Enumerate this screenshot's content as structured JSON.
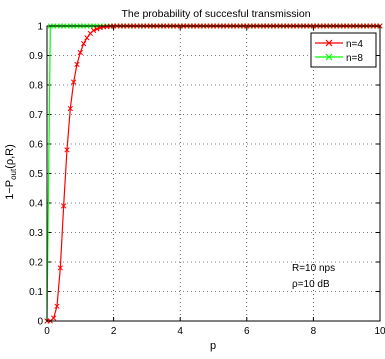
{
  "chart_data": {
    "type": "line",
    "title": "The probability of succesful transmission",
    "xlabel": "p",
    "ylabel": {
      "main": "1−P",
      "sub": "out",
      "tail": "(ρ,R)"
    },
    "xlim": [
      0,
      10
    ],
    "ylim": [
      0,
      1
    ],
    "xticks": [
      "0",
      "2",
      "4",
      "6",
      "8",
      "10"
    ],
    "xtick_values": [
      0,
      2,
      4,
      6,
      8,
      10
    ],
    "yticks": [
      "0",
      "0.1",
      "0.2",
      "0.3",
      "0.4",
      "0.5",
      "0.6",
      "0.7",
      "0.8",
      "0.9",
      "1"
    ],
    "ytick_values": [
      0,
      0.1,
      0.2,
      0.3,
      0.4,
      0.5,
      0.6,
      0.7,
      0.8,
      0.9,
      1
    ],
    "grid": true,
    "legend_position": "top-right",
    "annotations": [
      "R=10 nps",
      "ρ=10 dB"
    ],
    "series": [
      {
        "name": "n=4",
        "color": "#ff0000",
        "marker": "x",
        "x": [
          0,
          0.1,
          0.2,
          0.3,
          0.4,
          0.5,
          0.6,
          0.7,
          0.8,
          0.9,
          1.0,
          1.1,
          1.2,
          1.3,
          1.4,
          1.5,
          1.6,
          1.7,
          1.8,
          1.9,
          2.0,
          2.1,
          2.2,
          2.3,
          2.4,
          2.5,
          2.6,
          2.7,
          2.8,
          2.9,
          3.0,
          3.1,
          3.2,
          3.3,
          3.4,
          3.5,
          3.6,
          3.7,
          3.8,
          3.9,
          4.0,
          4.1,
          4.2,
          4.3,
          4.4,
          4.5,
          4.6,
          4.7,
          4.8,
          4.9,
          5.0,
          5.1,
          5.2,
          5.3,
          5.4,
          5.5,
          5.6,
          5.7,
          5.8,
          5.9,
          6.0,
          6.1,
          6.2,
          6.3,
          6.4,
          6.5,
          6.6,
          6.7,
          6.8,
          6.9,
          7.0,
          7.1,
          7.2,
          7.3,
          7.4,
          7.5,
          7.6,
          7.7,
          7.8,
          7.9,
          8.0,
          8.1,
          8.2,
          8.3,
          8.4,
          8.5,
          8.6,
          8.7,
          8.8,
          8.9,
          9.0,
          9.1,
          9.2,
          9.3,
          9.4,
          9.5,
          9.6,
          9.7,
          9.8,
          9.9,
          10.0
        ],
        "y": [
          0,
          0,
          0.01,
          0.05,
          0.18,
          0.39,
          0.58,
          0.72,
          0.81,
          0.87,
          0.91,
          0.94,
          0.96,
          0.975,
          0.985,
          0.99,
          0.994,
          0.997,
          0.998,
          0.999,
          1,
          1,
          1,
          1,
          1,
          1,
          1,
          1,
          1,
          1,
          1,
          1,
          1,
          1,
          1,
          1,
          1,
          1,
          1,
          1,
          1,
          1,
          1,
          1,
          1,
          1,
          1,
          1,
          1,
          1,
          1,
          1,
          1,
          1,
          1,
          1,
          1,
          1,
          1,
          1,
          1,
          1,
          1,
          1,
          1,
          1,
          1,
          1,
          1,
          1,
          1,
          1,
          1,
          1,
          1,
          1,
          1,
          1,
          1,
          1,
          1,
          1,
          1,
          1,
          1,
          1,
          1,
          1,
          1,
          1,
          1,
          1,
          1,
          1,
          1,
          1,
          1,
          1,
          1,
          1,
          1
        ]
      },
      {
        "name": "n=8",
        "color": "#00ff00",
        "marker": "x",
        "x": [
          0,
          0.1,
          0.2,
          0.3,
          0.4,
          0.5,
          0.6,
          0.7,
          0.8,
          0.9,
          1.0,
          1.1,
          1.2,
          1.3,
          1.4,
          1.5,
          1.6,
          1.7,
          1.8,
          1.9,
          2.0,
          2.1,
          2.2,
          2.3,
          2.4,
          2.5,
          2.6,
          2.7,
          2.8,
          2.9,
          3.0,
          3.1,
          3.2,
          3.3,
          3.4,
          3.5,
          3.6,
          3.7,
          3.8,
          3.9,
          4.0,
          4.1,
          4.2,
          4.3,
          4.4,
          4.5,
          4.6,
          4.7,
          4.8,
          4.9,
          5.0,
          5.1,
          5.2,
          5.3,
          5.4,
          5.5,
          5.6,
          5.7,
          5.8,
          5.9,
          6.0,
          6.1,
          6.2,
          6.3,
          6.4,
          6.5,
          6.6,
          6.7,
          6.8,
          6.9,
          7.0,
          7.1,
          7.2,
          7.3,
          7.4,
          7.5,
          7.6,
          7.7,
          7.8,
          7.9,
          8.0,
          8.1,
          8.2,
          8.3,
          8.4,
          8.5,
          8.6,
          8.7,
          8.8,
          8.9,
          9.0,
          9.1,
          9.2,
          9.3,
          9.4,
          9.5,
          9.6,
          9.7,
          9.8,
          9.9,
          10.0
        ],
        "y": [
          0,
          1,
          1,
          1,
          1,
          1,
          1,
          1,
          1,
          1,
          1,
          1,
          1,
          1,
          1,
          1,
          1,
          1,
          1,
          1,
          1,
          1,
          1,
          1,
          1,
          1,
          1,
          1,
          1,
          1,
          1,
          1,
          1,
          1,
          1,
          1,
          1,
          1,
          1,
          1,
          1,
          1,
          1,
          1,
          1,
          1,
          1,
          1,
          1,
          1,
          1,
          1,
          1,
          1,
          1,
          1,
          1,
          1,
          1,
          1,
          1,
          1,
          1,
          1,
          1,
          1,
          1,
          1,
          1,
          1,
          1,
          1,
          1,
          1,
          1,
          1,
          1,
          1,
          1,
          1,
          1,
          1,
          1,
          1,
          1,
          1,
          1,
          1,
          1,
          1,
          1,
          1,
          1,
          1,
          1,
          1,
          1,
          1,
          1,
          1,
          1
        ]
      }
    ]
  }
}
